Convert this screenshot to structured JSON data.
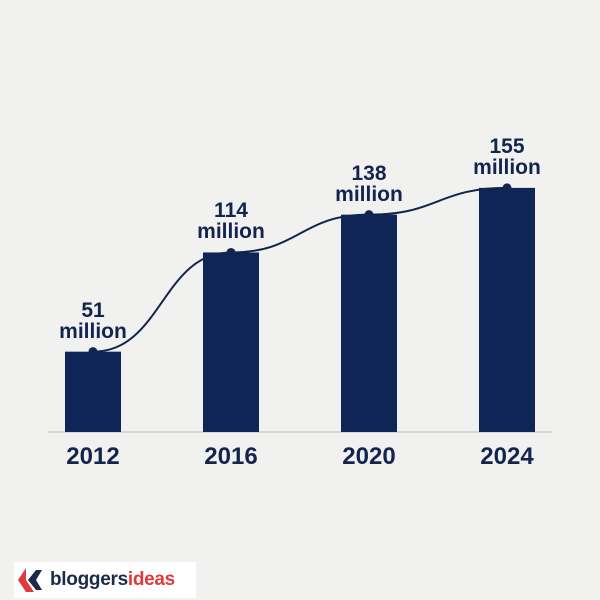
{
  "chart_data": {
    "type": "bar",
    "categories": [
      "2012",
      "2016",
      "2020",
      "2024"
    ],
    "values": [
      51,
      114,
      138,
      155
    ],
    "value_labels": [
      "51 million",
      "114 million",
      "138 million",
      "155 million"
    ],
    "color": "#0f2557",
    "line_color": "#13254f",
    "ylim": [
      0,
      160
    ]
  },
  "logo": {
    "brand": "bloggers",
    "accent": "ideas"
  }
}
